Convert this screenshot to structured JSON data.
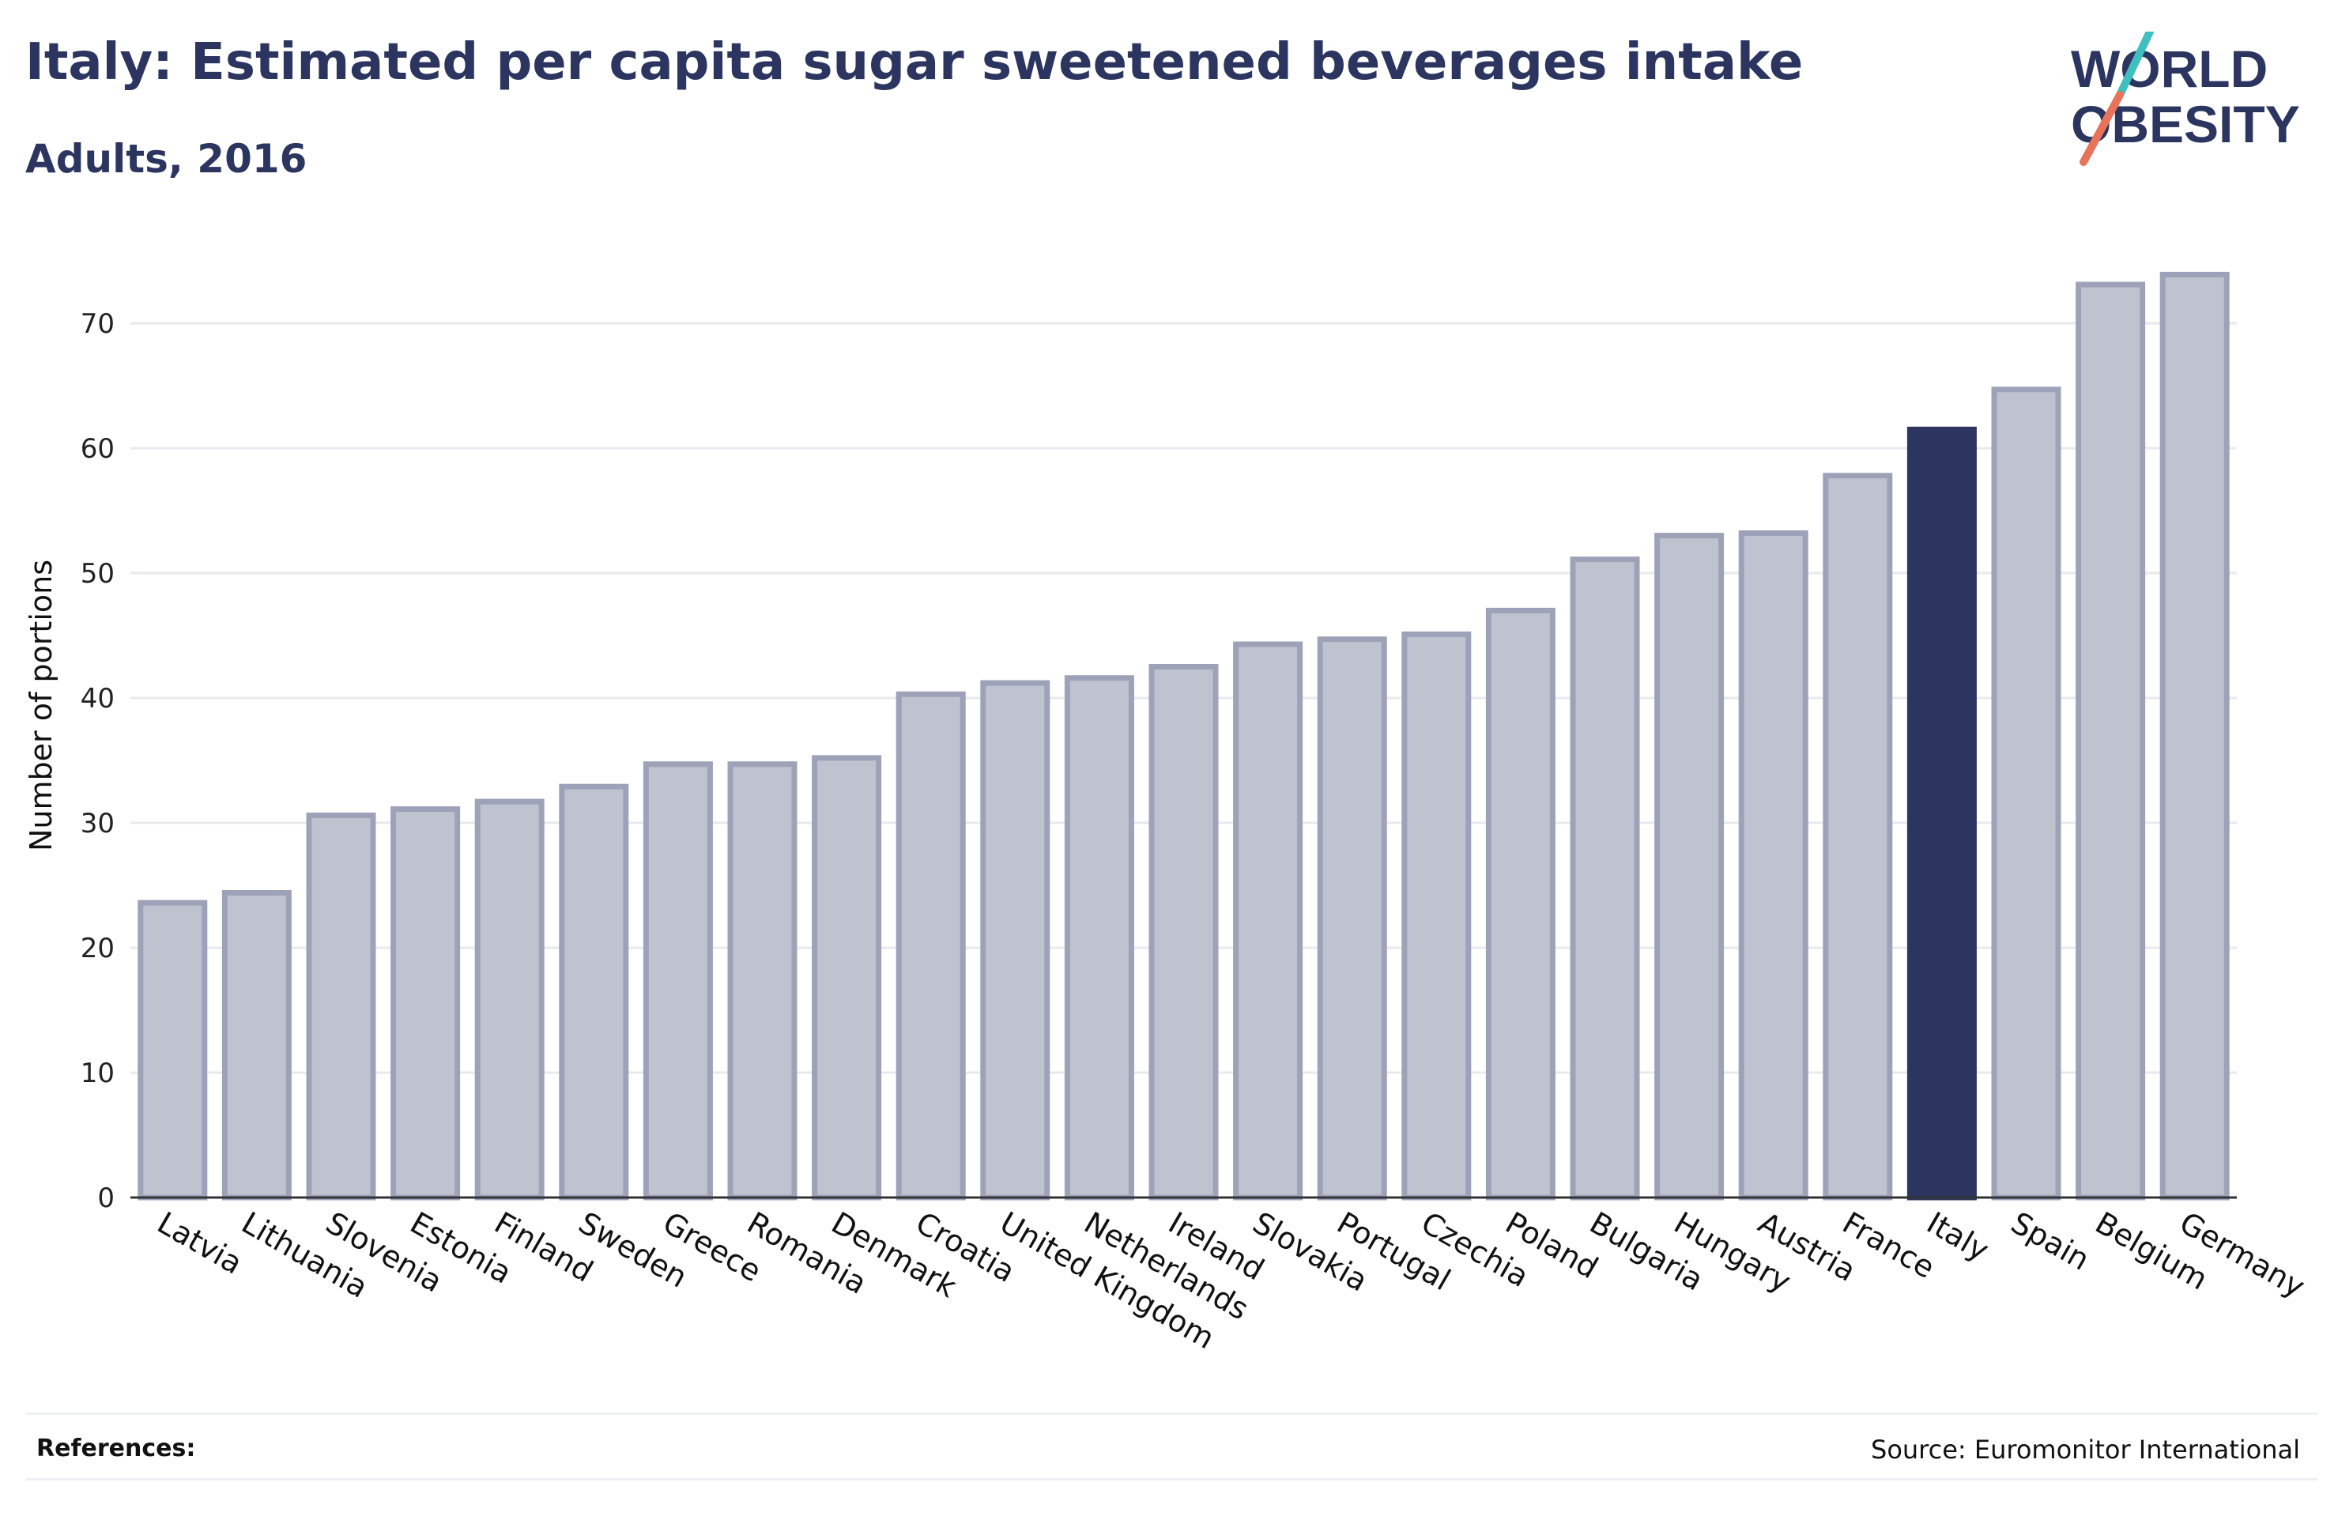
{
  "header": {
    "title": "Italy: Estimated per capita sugar sweetened beverages intake",
    "subtitle": "Adults, 2016"
  },
  "logo": {
    "line1": "WORLD",
    "line2": "OBESITY",
    "accent_colors": [
      "#3fbfbf",
      "#e8735a"
    ]
  },
  "footer": {
    "references_label": "References:",
    "source": "Source: Euromonitor International"
  },
  "colors": {
    "bar": "#bfc2cf",
    "bar_border": "#9ea2b8",
    "highlight": "#2b3560",
    "grid": "#e8eaee"
  },
  "chart_data": {
    "type": "bar",
    "ylabel": "Number of portions",
    "ylim": [
      0,
      75
    ],
    "yticks": [
      0,
      10,
      20,
      30,
      40,
      50,
      60,
      70
    ],
    "grid": true,
    "highlight_category": "Italy",
    "categories": [
      "Latvia",
      "Lithuania",
      "Slovenia",
      "Estonia",
      "Finland",
      "Sweden",
      "Greece",
      "Romania",
      "Denmark",
      "Croatia",
      "United Kingdom",
      "Netherlands",
      "Ireland",
      "Slovakia",
      "Portugal",
      "Czechia",
      "Poland",
      "Bulgaria",
      "Hungary",
      "Austria",
      "France",
      "Italy",
      "Spain",
      "Belgium",
      "Germany"
    ],
    "values": [
      23.6,
      24.4,
      30.6,
      31.1,
      31.7,
      32.9,
      34.7,
      34.7,
      35.2,
      40.3,
      41.2,
      41.6,
      42.5,
      44.3,
      44.7,
      45.1,
      47.0,
      51.1,
      53.0,
      53.2,
      57.8,
      61.5,
      64.7,
      73.1,
      73.9
    ]
  }
}
